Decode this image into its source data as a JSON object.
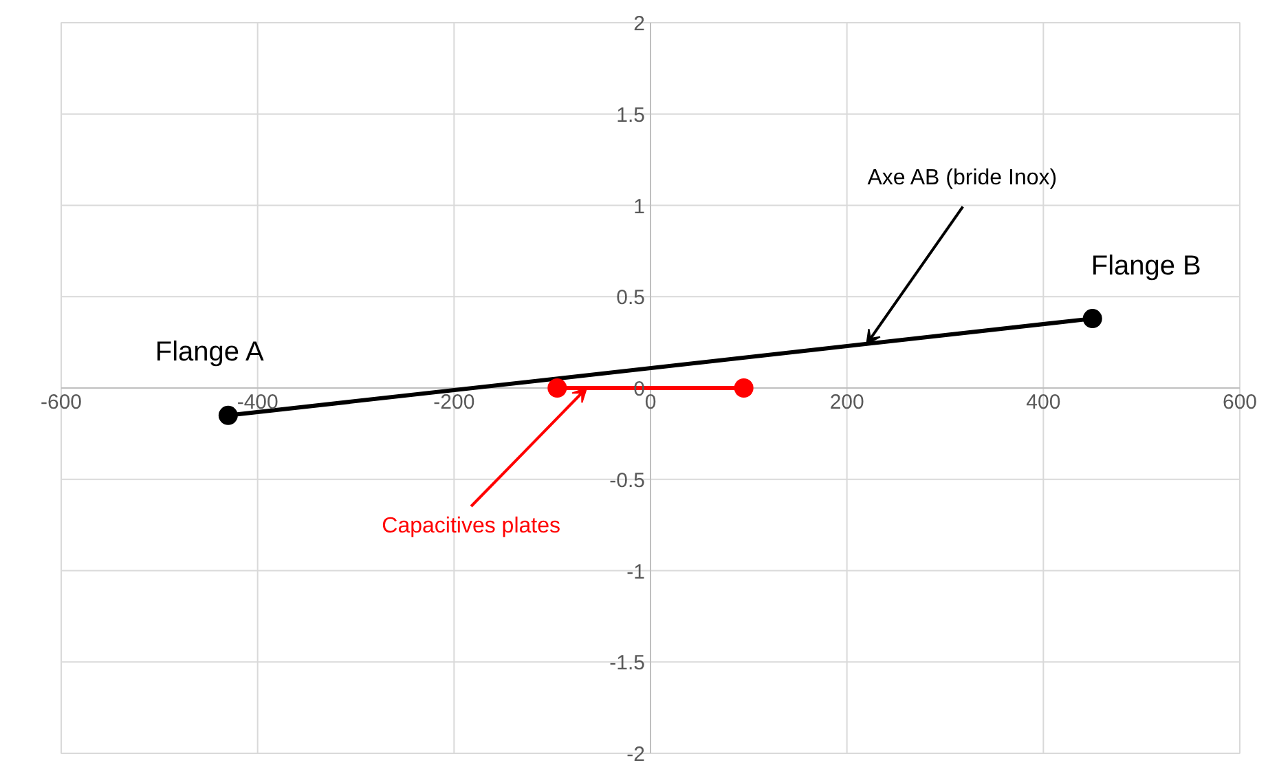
{
  "chart_data": {
    "type": "line",
    "marker": "circle",
    "line_style": "solid",
    "grid": true,
    "series": [
      {
        "color": "#000000",
        "x": [
          -430,
          450
        ],
        "values": [
          -0.15,
          0.38
        ]
      },
      {
        "color": "#ff0000",
        "x": [
          -95,
          95
        ],
        "values": [
          0,
          0
        ]
      }
    ],
    "xlim": [
      -600,
      600
    ],
    "xticks": [
      -600,
      -400,
      -200,
      0,
      200,
      400,
      600
    ],
    "ylim": [
      -2,
      2
    ],
    "yticks": [
      -2,
      -1.5,
      -1,
      -0.5,
      0,
      0.5,
      1,
      1.5,
      2
    ],
    "annotations": [
      {
        "text": "Flange A",
        "x": -430,
        "y": -0.15
      },
      {
        "text": "Flange B",
        "x": 450,
        "y": 0.38
      },
      {
        "text": "Axe AB (bride Inox)",
        "x": 220,
        "y": 0.24
      },
      {
        "text": "Capacitives plates",
        "x": -65,
        "y": 0
      }
    ]
  }
}
